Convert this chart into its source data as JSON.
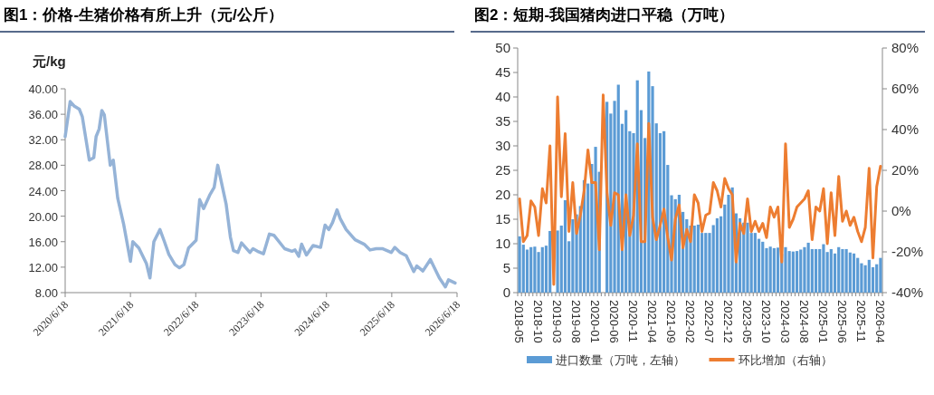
{
  "chart_data": [
    {
      "type": "line",
      "title": "图1：价格-生猪价格有所上升（元/公斤）",
      "ylabel": "元/kg",
      "x": [
        "2020-06-18",
        "2020-07-16",
        "2020-08-07",
        "2020-09-05",
        "2020-09-22",
        "2020-10-31",
        "2020-11-25",
        "2020-12-08",
        "2020-12-25",
        "2021-01-09",
        "2021-01-23",
        "2021-02-25",
        "2021-03-14",
        "2021-04-08",
        "2021-05-12",
        "2021-06-18",
        "2021-07-01",
        "2021-08-04",
        "2021-09-15",
        "2021-10-05",
        "2021-10-27",
        "2021-11-30",
        "2021-12-25",
        "2022-01-19",
        "2022-02-22",
        "2022-03-19",
        "2022-04-13",
        "2022-05-09",
        "2022-06-20",
        "2022-07-10",
        "2022-08-01",
        "2022-09-04",
        "2022-09-29",
        "2022-10-19",
        "2022-12-05",
        "2022-12-29",
        "2023-01-15",
        "2023-02-09",
        "2023-03-01",
        "2023-04-17",
        "2023-05-04",
        "2023-05-29",
        "2023-07-02",
        "2023-08-04",
        "2023-08-29",
        "2023-10-28",
        "2023-12-08",
        "2023-12-25",
        "2024-01-15",
        "2024-01-31",
        "2024-02-27",
        "2024-04-04",
        "2024-05-16",
        "2024-06-10",
        "2024-07-01",
        "2024-07-22",
        "2024-08-16",
        "2024-09-03",
        "2024-10-06",
        "2024-11-25",
        "2025-01-15",
        "2025-02-17",
        "2025-03-23",
        "2025-04-26",
        "2025-06-15",
        "2025-07-05",
        "2025-08-04",
        "2025-09-07",
        "2025-10-19",
        "2025-11-05",
        "2025-12-09",
        "2026-01-20",
        "2026-03-11",
        "2026-04-14",
        "2026-05-01",
        "2026-06-07"
      ],
      "series": [
        {
          "color": "#95b3d7",
          "values": [
            32.5,
            38,
            37.3,
            36.8,
            35.6,
            28.8,
            29.2,
            32.5,
            33.7,
            36.6,
            35.9,
            28,
            28.8,
            22.8,
            18.6,
            12.9,
            16,
            15,
            12.6,
            10.3,
            16,
            17.9,
            16,
            14,
            12.4,
            11.9,
            12.4,
            15,
            16.2,
            22.6,
            21.2,
            23.3,
            24.5,
            28,
            21.9,
            16.7,
            14.6,
            14.3,
            15.8,
            14.3,
            14.9,
            14.5,
            14.1,
            17.2,
            17.0,
            14.9,
            14.5,
            14.7,
            13.7,
            15.6,
            13.9,
            15.4,
            15.1,
            18.6,
            17.9,
            19.0,
            21.0,
            19.6,
            17.9,
            16.3,
            15.6,
            14.7,
            14.9,
            14.9,
            14.3,
            15.1,
            14.3,
            13.8,
            11.3,
            12.2,
            11.4,
            13.2,
            10.3,
            8.9,
            10.0,
            9.5
          ]
        }
      ],
      "xlim": [
        "2020-06-18",
        "2026-06-18"
      ],
      "xticks": [
        {
          "value": "2020-06-18",
          "label": "2020/6/18"
        },
        {
          "value": "2021-06-18",
          "label": "2021/6/18"
        },
        {
          "value": "2022-06-18",
          "label": "2022/6/18"
        },
        {
          "value": "2023-06-18",
          "label": "2023/6/18"
        },
        {
          "value": "2024-06-18",
          "label": "2024/6/18"
        },
        {
          "value": "2025-06-18",
          "label": "2025/6/18"
        },
        {
          "value": "2026-06-18",
          "label": "2026/6/18"
        }
      ],
      "ylim": [
        8,
        40
      ],
      "yticks": [
        {
          "value": 8,
          "label": "8.00"
        },
        {
          "value": 12,
          "label": "12.00"
        },
        {
          "value": 16,
          "label": "16.00"
        },
        {
          "value": 20,
          "label": "20.00"
        },
        {
          "value": 24,
          "label": "24.00"
        },
        {
          "value": 28,
          "label": "28.00"
        },
        {
          "value": 32,
          "label": "32.00"
        },
        {
          "value": 36,
          "label": "36.00"
        },
        {
          "value": 40,
          "label": "40.00"
        }
      ]
    },
    {
      "type": "bar",
      "title": "图2：短期-我国猪肉进口平稳（万吨）",
      "legend": "bottom",
      "categories": [
        "2018-05",
        null,
        null,
        null,
        null,
        "2018-10",
        null,
        null,
        null,
        null,
        "2019-03",
        null,
        null,
        null,
        null,
        "2019-08",
        null,
        null,
        null,
        null,
        "2020-01",
        null,
        null,
        null,
        null,
        "2020-06",
        null,
        null,
        null,
        null,
        "2020-11",
        null,
        null,
        null,
        null,
        "2021-04",
        null,
        null,
        null,
        null,
        "2021-09",
        null,
        null,
        null,
        null,
        "2022-02",
        null,
        null,
        null,
        null,
        "2022-07",
        null,
        null,
        null,
        null,
        "2022-12",
        null,
        null,
        null,
        null,
        "2023-05",
        null,
        null,
        null,
        null,
        "2023-10",
        null,
        null,
        null,
        null,
        "2024-03",
        null,
        null,
        null,
        null,
        "2024-08",
        null,
        null,
        null,
        null,
        "2025-01",
        null,
        null,
        null,
        null,
        "2025-06",
        null,
        null,
        null,
        null,
        "2025-11",
        null,
        null,
        null,
        null,
        "2026-04"
      ],
      "series": [
        {
          "type": "bar",
          "name": "进口数量（万吨，左轴）",
          "color": "#5b9bd5",
          "values": [
            11.5,
            9.8,
            8.8,
            9.3,
            9.4,
            8.3,
            9.3,
            9.6,
            12.6,
            null,
            12.7,
            13.7,
            18.9,
            10.5,
            15,
            16,
            17.7,
            23,
            22.3,
            26.3,
            29.8,
            24.7,
            null,
            39,
            36.6,
            39.2,
            42.5,
            34.5,
            37.3,
            33,
            32.6,
            43.4,
            37.3,
            31.6,
            45.2,
            42.2,
            34.6,
            32.6,
            33,
            26.1,
            19.9,
            19.1,
            20,
            16.5,
            15,
            13.7,
            13.7,
            13.9,
            12.2,
            12.2,
            12.2,
            13.8,
            15.2,
            15.6,
            18,
            20,
            21.5,
            16.2,
            15.2,
            14.3,
            14.3,
            12.2,
            12.2,
            11,
            10.4,
            9.1,
            9.4,
            9.1,
            9.2,
            7.9,
            9.3,
            8.5,
            8.4,
            8.5,
            8.8,
            9.3,
            10.2,
            8.9,
            8.9,
            8.9,
            9.9,
            8.3,
            8.9,
            8,
            9.3,
            8.9,
            8.9,
            8.2,
            8,
            7.1,
            6,
            5.6,
            6.7,
            5.2,
            5.8,
            7.1
          ]
        },
        {
          "type": "line",
          "axis": "y2",
          "name": "环比增加（右轴）",
          "color": "#ed7d31",
          "values": [
            6,
            -15,
            -12,
            5,
            2,
            -12,
            11,
            4,
            32,
            -36,
            56,
            7,
            38,
            -10,
            14,
            -11,
            -2,
            10,
            30,
            14,
            14,
            -19,
            57,
            9,
            -7,
            9,
            8,
            -19,
            8,
            -12,
            -2,
            33,
            -15,
            -15,
            43,
            -3,
            -14,
            -7,
            1,
            -13,
            -24,
            -4,
            3,
            -18,
            -9,
            -15,
            8,
            4,
            -10,
            -2,
            -1,
            14,
            10,
            2,
            16,
            11,
            8,
            -25,
            -6,
            -11,
            6,
            -10,
            -5,
            -10,
            -6,
            -13,
            2,
            -3,
            2,
            -25,
            33,
            -8,
            -4,
            2,
            4,
            6,
            10,
            -14,
            2,
            0,
            11,
            -16,
            9,
            -12,
            17,
            -5,
            0,
            -7,
            -3,
            -10,
            -15,
            -8,
            21,
            -23,
            12,
            22
          ]
        }
      ],
      "ylim": [
        0,
        50
      ],
      "yticks": [
        0,
        5,
        10,
        15,
        20,
        25,
        30,
        35,
        40,
        45,
        50
      ],
      "y2lim": [
        -40,
        80
      ],
      "y2ticks": [
        {
          "value": -40,
          "label": "-40%"
        },
        {
          "value": -20,
          "label": "-20%"
        },
        {
          "value": 0,
          "label": "0%"
        },
        {
          "value": 20,
          "label": "20%"
        },
        {
          "value": 40,
          "label": "40%"
        },
        {
          "value": 60,
          "label": "60%"
        },
        {
          "value": 80,
          "label": "80%"
        }
      ]
    }
  ]
}
